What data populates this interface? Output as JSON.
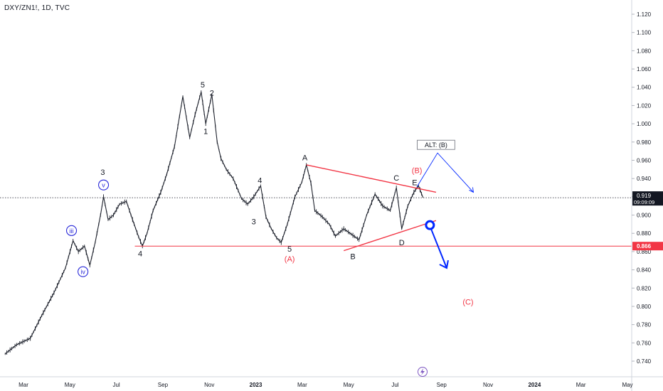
{
  "chart_data": {
    "type": "line",
    "title": "DXY/ZN1!, 1D, TVC",
    "symbol_label": "DXY/ZN1!, 1D, TVC",
    "y_ticks": [
      "1.120",
      "1.100",
      "1.080",
      "1.060",
      "1.040",
      "1.020",
      "1.000",
      "0.980",
      "0.960",
      "0.940",
      "0.920",
      "0.900",
      "0.880",
      "0.860",
      "0.840",
      "0.820",
      "0.800",
      "0.780",
      "0.760",
      "0.740"
    ],
    "x_ticks": [
      "Mar",
      "May",
      "Jul",
      "Sep",
      "Nov",
      "2023",
      "Mar",
      "May",
      "Jul",
      "Sep",
      "Nov",
      "2024",
      "Mar",
      "May"
    ],
    "ylim": [
      0.732,
      1.128
    ],
    "last_price": "0.919",
    "last_time": "09:09:09",
    "support_level": "0.866",
    "colors": {
      "price": "#1e222d",
      "trendline": "#f23645",
      "support": "#f23645",
      "projection": "#0026ff",
      "label_red": "#f23645",
      "label_dark": "#131722",
      "label_blue": "#2a2ad9"
    },
    "series": [
      {
        "values": [
          {
            "x": "2022-02-05",
            "y": 0.748
          },
          {
            "x": "2022-02-20",
            "y": 0.758
          },
          {
            "x": "2022-03-10",
            "y": 0.765
          },
          {
            "x": "2022-03-25",
            "y": 0.79
          },
          {
            "x": "2022-04-10",
            "y": 0.815
          },
          {
            "x": "2022-04-25",
            "y": 0.842
          },
          {
            "x": "2022-05-05",
            "y": 0.872
          },
          {
            "x": "2022-05-12",
            "y": 0.86
          },
          {
            "x": "2022-05-20",
            "y": 0.866
          },
          {
            "x": "2022-05-27",
            "y": 0.845
          },
          {
            "x": "2022-06-03",
            "y": 0.87
          },
          {
            "x": "2022-06-10",
            "y": 0.9
          },
          {
            "x": "2022-06-14",
            "y": 0.92
          },
          {
            "x": "2022-06-20",
            "y": 0.895
          },
          {
            "x": "2022-06-27",
            "y": 0.9
          },
          {
            "x": "2022-07-05",
            "y": 0.912
          },
          {
            "x": "2022-07-14",
            "y": 0.915
          },
          {
            "x": "2022-07-22",
            "y": 0.895
          },
          {
            "x": "2022-07-30",
            "y": 0.876
          },
          {
            "x": "2022-08-04",
            "y": 0.866
          },
          {
            "x": "2022-08-10",
            "y": 0.88
          },
          {
            "x": "2022-08-18",
            "y": 0.905
          },
          {
            "x": "2022-08-28",
            "y": 0.925
          },
          {
            "x": "2022-09-05",
            "y": 0.945
          },
          {
            "x": "2022-09-15",
            "y": 0.975
          },
          {
            "x": "2022-09-26",
            "y": 1.03
          },
          {
            "x": "2022-10-05",
            "y": 0.985
          },
          {
            "x": "2022-10-12",
            "y": 1.01
          },
          {
            "x": "2022-10-20",
            "y": 1.035
          },
          {
            "x": "2022-10-26",
            "y": 1.0
          },
          {
            "x": "2022-11-03",
            "y": 1.032
          },
          {
            "x": "2022-11-10",
            "y": 0.98
          },
          {
            "x": "2022-11-15",
            "y": 0.962
          },
          {
            "x": "2022-11-22",
            "y": 0.95
          },
          {
            "x": "2022-12-01",
            "y": 0.94
          },
          {
            "x": "2022-12-12",
            "y": 0.918
          },
          {
            "x": "2022-12-20",
            "y": 0.912
          },
          {
            "x": "2022-12-28",
            "y": 0.92
          },
          {
            "x": "2023-01-06",
            "y": 0.932
          },
          {
            "x": "2023-01-13",
            "y": 0.898
          },
          {
            "x": "2023-01-20",
            "y": 0.885
          },
          {
            "x": "2023-01-27",
            "y": 0.875
          },
          {
            "x": "2023-02-02",
            "y": 0.87
          },
          {
            "x": "2023-02-10",
            "y": 0.89
          },
          {
            "x": "2023-02-20",
            "y": 0.92
          },
          {
            "x": "2023-03-01",
            "y": 0.936
          },
          {
            "x": "2023-03-07",
            "y": 0.955
          },
          {
            "x": "2023-03-13",
            "y": 0.935
          },
          {
            "x": "2023-03-18",
            "y": 0.905
          },
          {
            "x": "2023-03-28",
            "y": 0.898
          },
          {
            "x": "2023-04-06",
            "y": 0.89
          },
          {
            "x": "2023-04-14",
            "y": 0.877
          },
          {
            "x": "2023-04-25",
            "y": 0.885
          },
          {
            "x": "2023-05-05",
            "y": 0.879
          },
          {
            "x": "2023-05-15",
            "y": 0.873
          },
          {
            "x": "2023-05-25",
            "y": 0.9
          },
          {
            "x": "2023-06-05",
            "y": 0.923
          },
          {
            "x": "2023-06-15",
            "y": 0.91
          },
          {
            "x": "2023-06-25",
            "y": 0.905
          },
          {
            "x": "2023-07-03",
            "y": 0.93
          },
          {
            "x": "2023-07-10",
            "y": 0.885
          },
          {
            "x": "2023-07-18",
            "y": 0.91
          },
          {
            "x": "2023-07-26",
            "y": 0.925
          },
          {
            "x": "2023-08-01",
            "y": 0.932
          },
          {
            "x": "2023-08-07",
            "y": 0.919
          }
        ]
      }
    ],
    "support_line": {
      "y": 0.866,
      "x_start": "2022-07-25"
    },
    "trendlines": [
      {
        "from": {
          "x": "2023-03-07",
          "y": 0.955
        },
        "to": {
          "x": "2023-08-24",
          "y": 0.925
        }
      },
      {
        "from": {
          "x": "2023-04-25",
          "y": 0.861
        },
        "to": {
          "x": "2023-08-24",
          "y": 0.894
        }
      }
    ],
    "projections": [
      {
        "kind": "alt-path",
        "points": [
          {
            "x": "2023-07-30",
            "y": 0.931
          },
          {
            "x": "2023-08-26",
            "y": 0.968
          },
          {
            "x": "2023-10-12",
            "y": 0.925
          }
        ]
      },
      {
        "kind": "main-arrow",
        "points": [
          {
            "x": "2023-08-16",
            "y": 0.888
          },
          {
            "x": "2023-09-07",
            "y": 0.842
          }
        ]
      }
    ],
    "projection_marker": {
      "x": "2023-08-16",
      "y": 0.889
    },
    "annotations": [
      {
        "text": "iii",
        "x": "2022-05-03",
        "y": 0.883,
        "style": "circle-blue"
      },
      {
        "text": "iv",
        "x": "2022-05-18",
        "y": 0.838,
        "style": "circle-blue"
      },
      {
        "text": "v",
        "x": "2022-06-14",
        "y": 0.933,
        "style": "circle-blue"
      },
      {
        "text": "3",
        "x": "2022-06-13",
        "y": 0.947,
        "style": "dark"
      },
      {
        "text": "4",
        "x": "2022-08-01",
        "y": 0.858,
        "style": "dark"
      },
      {
        "text": "5",
        "x": "2022-10-22",
        "y": 1.043,
        "style": "dark"
      },
      {
        "text": "2",
        "x": "2022-11-03",
        "y": 1.034,
        "style": "dark"
      },
      {
        "text": "1",
        "x": "2022-10-26",
        "y": 0.992,
        "style": "dark"
      },
      {
        "text": "4",
        "x": "2023-01-05",
        "y": 0.938,
        "style": "dark"
      },
      {
        "text": "3",
        "x": "2022-12-28",
        "y": 0.893,
        "style": "dark"
      },
      {
        "text": "5",
        "x": "2023-02-13",
        "y": 0.863,
        "style": "dark"
      },
      {
        "text": "(A)",
        "x": "2023-02-13",
        "y": 0.852,
        "style": "red"
      },
      {
        "text": "A",
        "x": "2023-03-05",
        "y": 0.963,
        "style": "dark"
      },
      {
        "text": "B",
        "x": "2023-05-07",
        "y": 0.855,
        "style": "dark"
      },
      {
        "text": "C",
        "x": "2023-07-03",
        "y": 0.941,
        "style": "dark"
      },
      {
        "text": "D",
        "x": "2023-07-10",
        "y": 0.87,
        "style": "dark"
      },
      {
        "text": "E",
        "x": "2023-07-27",
        "y": 0.936,
        "style": "dark"
      },
      {
        "text": "(B)",
        "x": "2023-07-30",
        "y": 0.949,
        "style": "red"
      },
      {
        "text": "(C)",
        "x": "2023-10-05",
        "y": 0.805,
        "style": "red"
      },
      {
        "text": "ALT: (B)",
        "x": "2023-08-24",
        "y": 0.975,
        "style": "boxed"
      }
    ]
  }
}
